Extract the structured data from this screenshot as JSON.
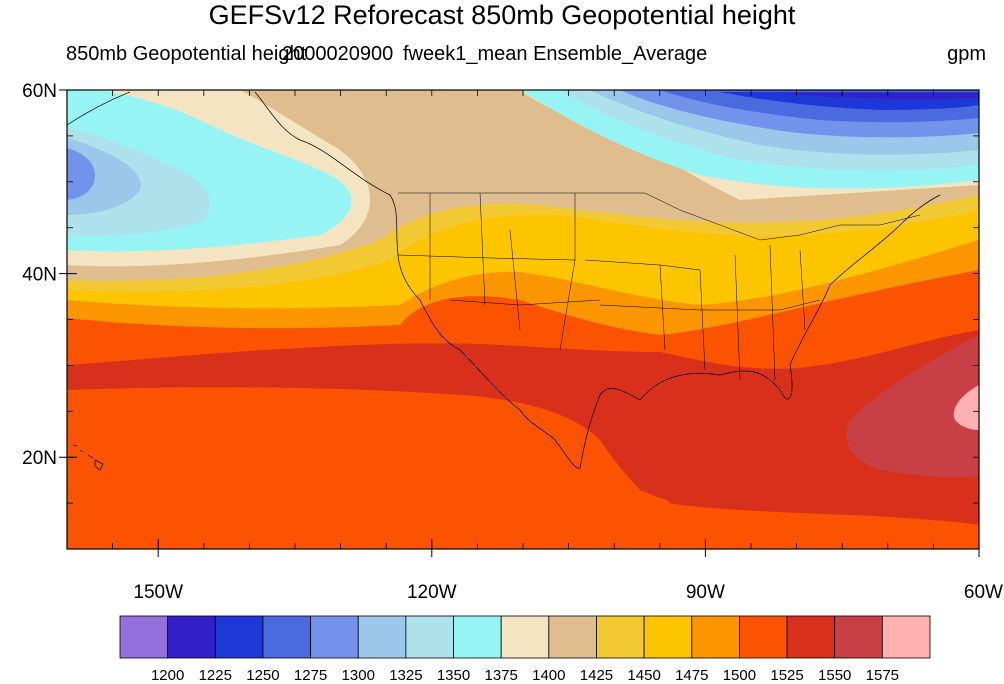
{
  "title": "GEFSv12 Reforecast 850mb Geopotential height",
  "subtitle_left": "850mb Geopotential height",
  "subtitle_overlap": "2000020900",
  "subtitle_middle": "fweek1_mean Ensemble_Average",
  "units": "gpm",
  "map": {
    "projection": "cylindrical-equidistant",
    "lon_range": [
      -160,
      -60
    ],
    "lat_range": [
      10,
      60
    ],
    "lat_ticks": [
      {
        "lat": 60,
        "label": "60N"
      },
      {
        "lat": 40,
        "label": "40N"
      },
      {
        "lat": 20,
        "label": "20N"
      }
    ],
    "lon_ticks": [
      {
        "lon": -150,
        "label": "150W"
      },
      {
        "lon": -120,
        "label": "120W"
      },
      {
        "lon": -90,
        "label": "90W"
      },
      {
        "lon": -60,
        "label": "60W"
      }
    ],
    "boundaries": [
      "coastlines",
      "US state borders"
    ]
  },
  "colorbar": {
    "colors": [
      "#9370db",
      "#3320c8",
      "#1e38d8",
      "#4a6be0",
      "#7392ec",
      "#9bc7ea",
      "#ade2ec",
      "#96f5f4",
      "#f4e4c2",
      "#dfbd8e",
      "#f2c933",
      "#fdc400",
      "#fc9600",
      "#fb5300",
      "#d9301c",
      "#c84046",
      "#ffb0b0"
    ],
    "labels": [
      "1200",
      "1225",
      "1250",
      "1275",
      "1300",
      "1325",
      "1350",
      "1375",
      "1400",
      "1425",
      "1450",
      "1475",
      "1500",
      "1525",
      "1550",
      "1575"
    ]
  }
}
